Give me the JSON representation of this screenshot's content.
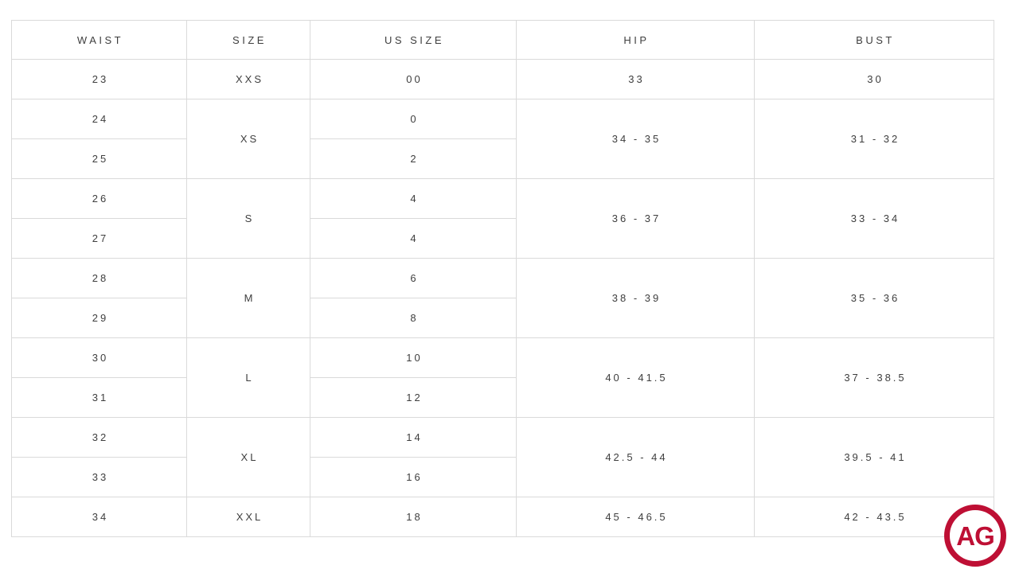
{
  "table": {
    "headers": [
      "WAIST",
      "SIZE",
      "US SIZE",
      "HIP",
      "BUST"
    ],
    "border_color": "#dadada",
    "text_color": "#3e3e3e",
    "groups": [
      {
        "size": "XXS",
        "hip": "33",
        "bust": "30",
        "rows": [
          {
            "waist": "23",
            "us": "00"
          }
        ]
      },
      {
        "size": "XS",
        "hip": "34 - 35",
        "bust": "31 - 32",
        "rows": [
          {
            "waist": "24",
            "us": "0"
          },
          {
            "waist": "25",
            "us": "2"
          }
        ]
      },
      {
        "size": "S",
        "hip": "36 - 37",
        "bust": "33 - 34",
        "rows": [
          {
            "waist": "26",
            "us": "4"
          },
          {
            "waist": "27",
            "us": "4"
          }
        ]
      },
      {
        "size": "M",
        "hip": "38 - 39",
        "bust": "35 - 36",
        "rows": [
          {
            "waist": "28",
            "us": "6"
          },
          {
            "waist": "29",
            "us": "8"
          }
        ]
      },
      {
        "size": "L",
        "hip": "40 - 41.5",
        "bust": "37 - 38.5",
        "rows": [
          {
            "waist": "30",
            "us": "10"
          },
          {
            "waist": "31",
            "us": "12"
          }
        ]
      },
      {
        "size": "XL",
        "hip": "42.5 - 44",
        "bust": "39.5 - 41",
        "rows": [
          {
            "waist": "32",
            "us": "14"
          },
          {
            "waist": "33",
            "us": "16"
          }
        ]
      },
      {
        "size": "XXL",
        "hip": "45 - 46.5",
        "bust": "42 - 43.5",
        "rows": [
          {
            "waist": "34",
            "us": "18"
          }
        ]
      }
    ]
  },
  "logo": {
    "text": "AG",
    "color": "#be0f34"
  },
  "chart_data": {
    "type": "table",
    "columns": [
      "WAIST",
      "SIZE",
      "US SIZE",
      "HIP",
      "BUST"
    ],
    "rows": [
      [
        "23",
        "XXS",
        "00",
        "33",
        "30"
      ],
      [
        "24",
        "XS",
        "0",
        "34 - 35",
        "31 - 32"
      ],
      [
        "25",
        "XS",
        "2",
        "34 - 35",
        "31 - 32"
      ],
      [
        "26",
        "S",
        "4",
        "36 - 37",
        "33 - 34"
      ],
      [
        "27",
        "S",
        "4",
        "36 - 37",
        "33 - 34"
      ],
      [
        "28",
        "M",
        "6",
        "38 - 39",
        "35 - 36"
      ],
      [
        "29",
        "M",
        "8",
        "38 - 39",
        "35 - 36"
      ],
      [
        "30",
        "L",
        "10",
        "40 - 41.5",
        "37 - 38.5"
      ],
      [
        "31",
        "L",
        "12",
        "40 - 41.5",
        "37 - 38.5"
      ],
      [
        "32",
        "XL",
        "14",
        "42.5 - 44",
        "39.5 - 41"
      ],
      [
        "33",
        "XL",
        "16",
        "42.5 - 44",
        "39.5 - 41"
      ],
      [
        "34",
        "XXL",
        "18",
        "45 - 46.5",
        "42 - 43.5"
      ]
    ],
    "layout_hints": {
      "merged_columns_by_size_group": [
        "SIZE",
        "HIP",
        "BUST"
      ],
      "grid": true,
      "header_position": "top"
    }
  }
}
